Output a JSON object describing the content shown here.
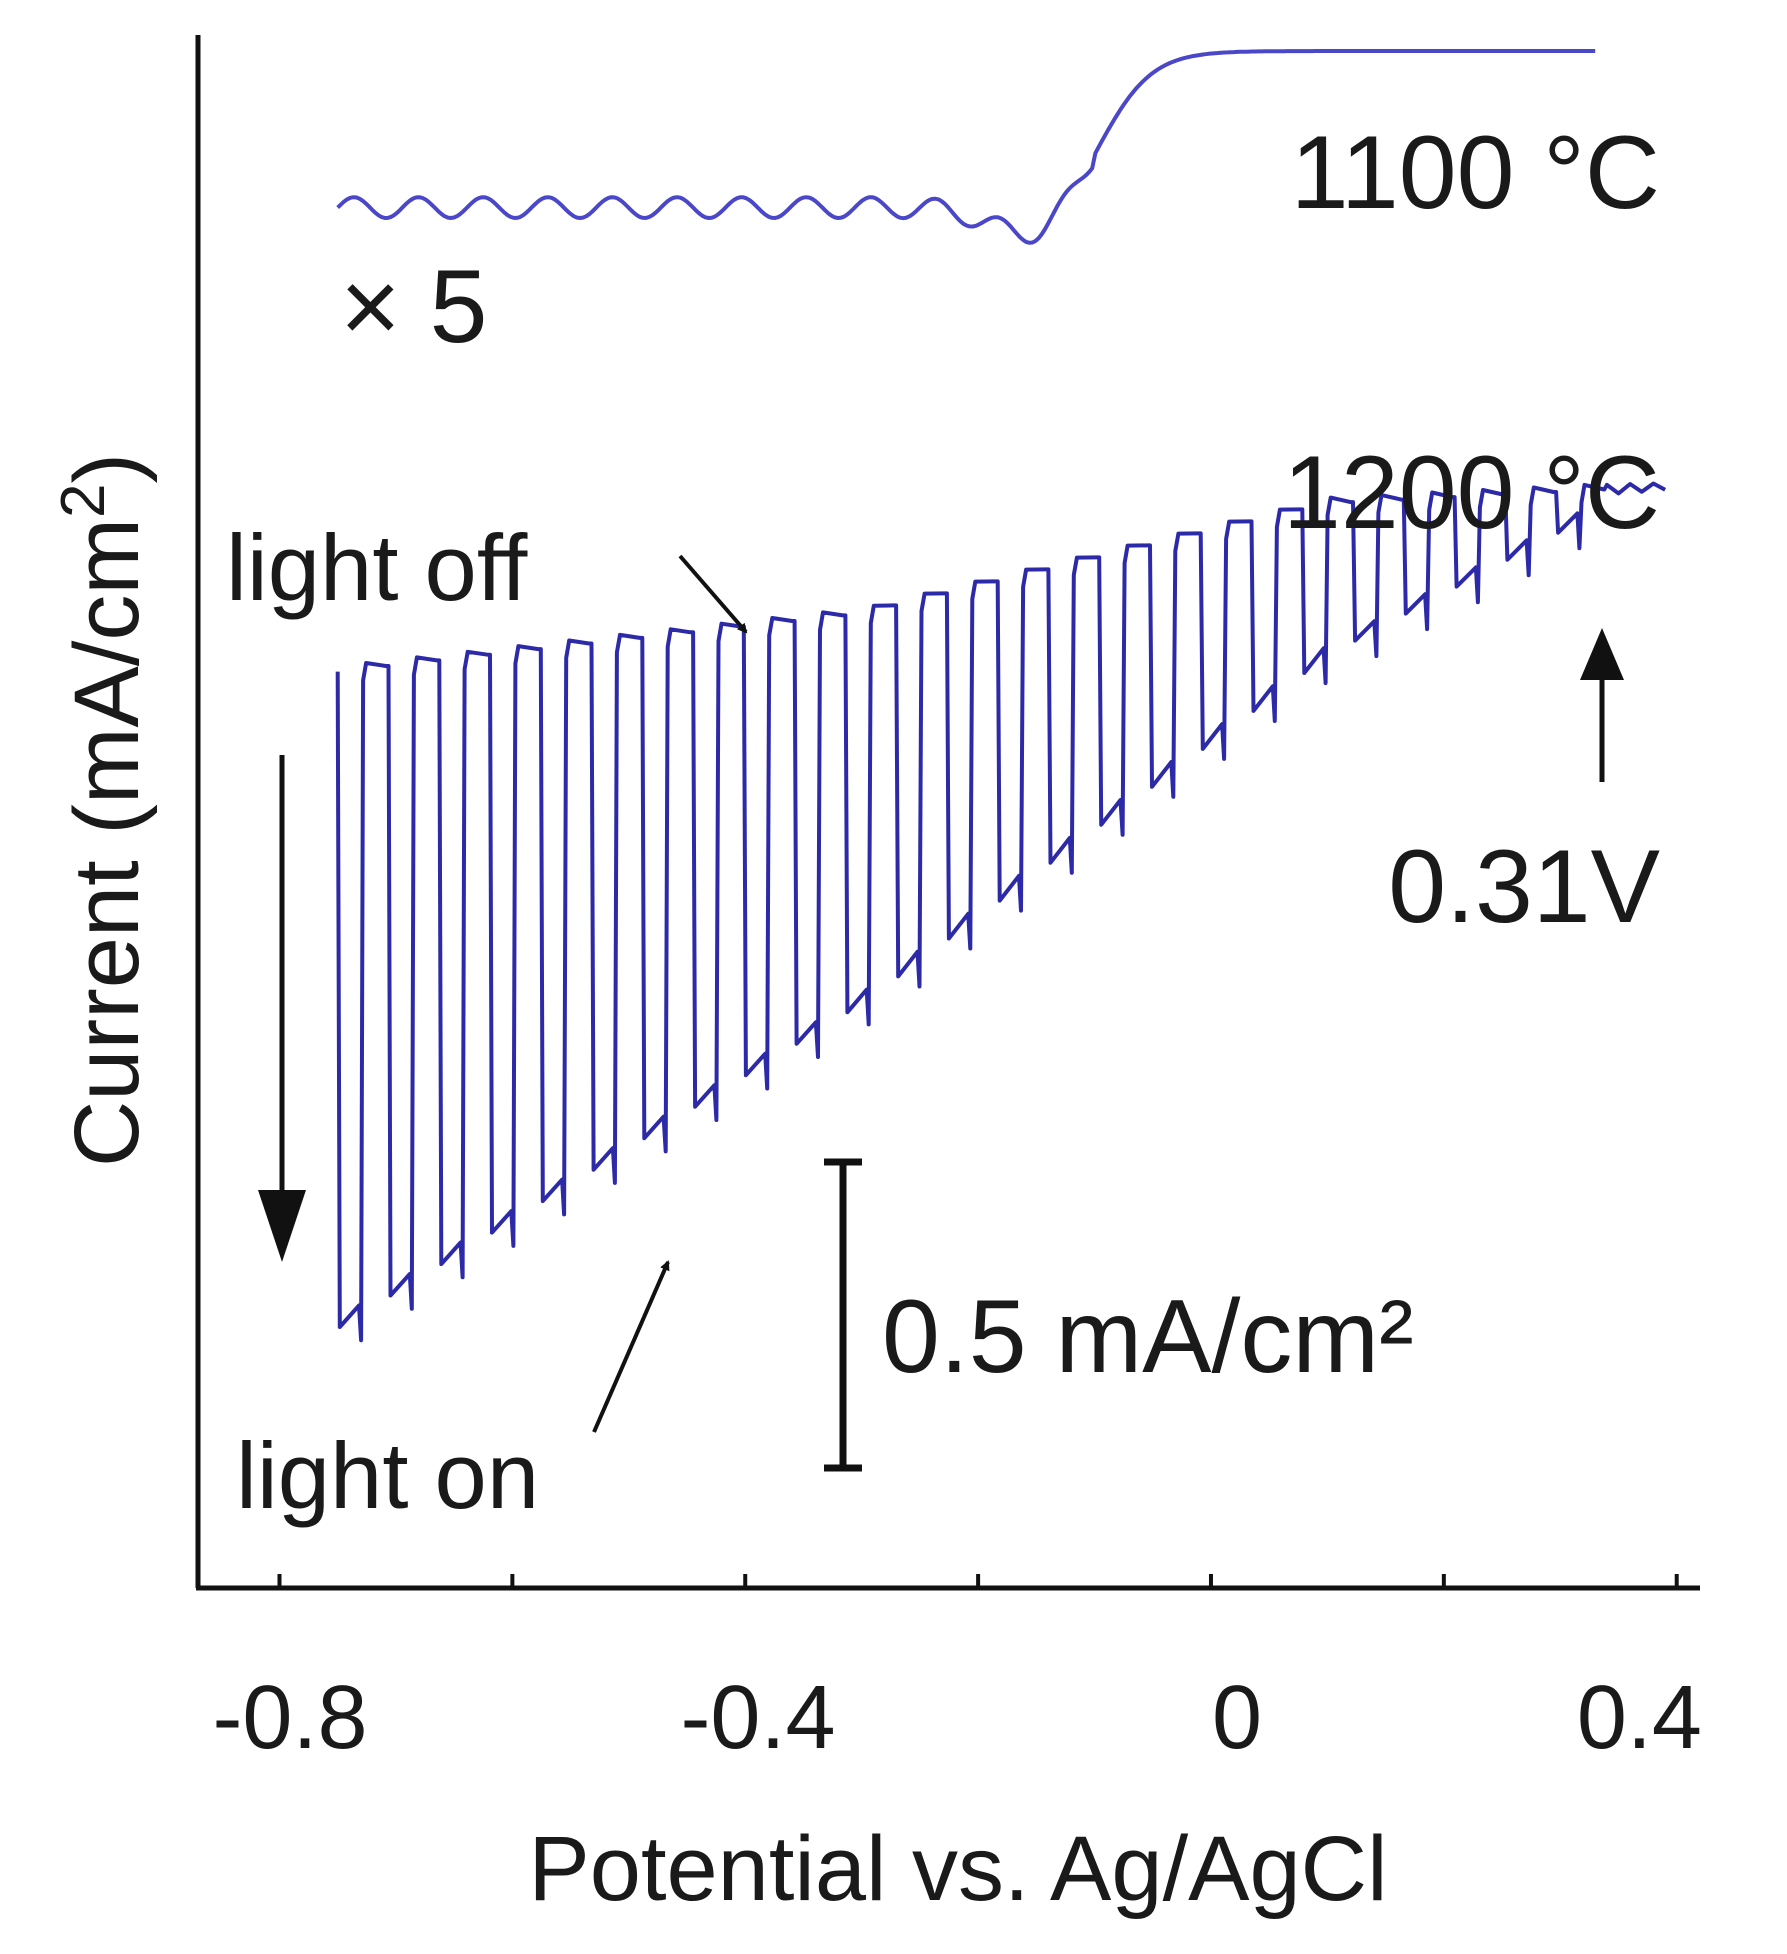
{
  "chart_data": {
    "type": "line",
    "xlabel": "Potential vs. Ag/AgCl",
    "ylabel_main": "Current (mA/cm",
    "ylabel_sup": "2",
    "ylabel_tail": ")",
    "xlim": [
      -0.87,
      0.42
    ],
    "x_ticks": [
      -0.8,
      -0.4,
      0,
      0.4
    ],
    "x_tick_labels": [
      "-0.8",
      "-0.4",
      "0",
      "0.4"
    ],
    "x_minor_ticks": [
      -0.6,
      -0.2,
      0.2
    ],
    "y_ticks_shown": false,
    "y_units": "mA/cm²",
    "series": [
      {
        "name": "1100 °C (×5)",
        "label": "1100 °C",
        "color": "#4a48c8",
        "multiplier_label": "× 5",
        "x_range": [
          -0.75,
          0.33
        ],
        "baseline": 2.38,
        "plateau": 2.65,
        "onset_x": -0.12,
        "ripple_periods": 15
      },
      {
        "name": "1200 °C (chopped light)",
        "label": "1200 °C",
        "color": "#2d2aa8",
        "x_range": [
          -0.75,
          0.4
        ],
        "dark_current": {
          "x": [
            -0.75,
            -0.3,
            0.1,
            0.4
          ],
          "y": [
            1.58,
            1.68,
            1.87,
            1.9
          ]
        },
        "photocurrent_envelope": {
          "x": [
            -0.75,
            -0.3,
            0.1,
            0.4
          ],
          "y": [
            0.42,
            0.98,
            1.58,
            1.9
          ]
        },
        "chop_cycles": 25
      }
    ],
    "scale_bar": {
      "value": 0.5,
      "label": "0.5 mA/cm²"
    },
    "annotations": {
      "light_off": "light off",
      "light_on": "light on",
      "onset_potential": "0.31V"
    }
  }
}
